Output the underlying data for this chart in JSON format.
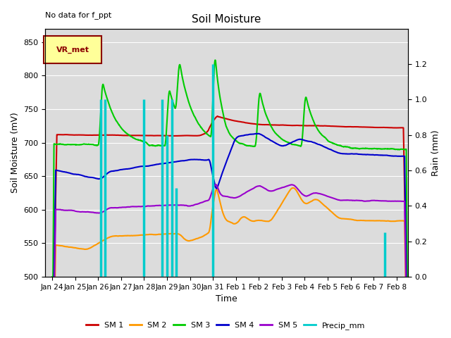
{
  "title": "Soil Moisture",
  "xlabel": "Time",
  "ylabel": "Soil Moisture (mV)",
  "ylabel_right": "Rain (mm)",
  "annotation_text": "No data for f_ppt",
  "legend_box_text": "VR_met",
  "ylim_left": [
    500,
    870
  ],
  "ylim_right": [
    0.0,
    1.4
  ],
  "yticks_right": [
    0.0,
    0.2,
    0.4,
    0.6,
    0.8,
    1.0,
    1.2
  ],
  "yticks_left": [
    500,
    550,
    600,
    650,
    700,
    750,
    800,
    850
  ],
  "bg_color": "#dcdcdc",
  "colors": {
    "SM1": "#cc0000",
    "SM2": "#ff9900",
    "SM3": "#00cc00",
    "SM4": "#0000cc",
    "SM5": "#9900cc",
    "Precip": "#00cccc"
  },
  "tick_labels": [
    "Jan 24",
    "Jan 25",
    "Jan 26",
    "Jan 27",
    "Jan 28",
    "Jan 29",
    "Jan 30",
    "Jan 31",
    "Feb 1",
    "Feb 2",
    "Feb 3",
    "Feb 4",
    "Feb 5",
    "Feb 6",
    "Feb 7",
    "Feb 8"
  ],
  "rain_events": [
    2.1,
    2.3,
    4.0,
    4.8,
    5.0,
    5.2,
    5.4,
    7.0,
    14.5
  ],
  "rain_amounts": [
    1.0,
    1.0,
    1.0,
    1.0,
    0.8,
    1.0,
    0.5,
    1.2,
    0.25
  ],
  "line_width": 1.5
}
